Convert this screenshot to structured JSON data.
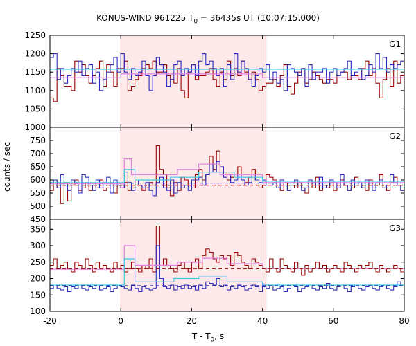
{
  "chart_data": {
    "type": "line",
    "title": {
      "prefix": "KONUS-WIND 961225 T",
      "sub": "0",
      "suffix": " = 36435s UT (10:07:15.000)"
    },
    "xlabel": {
      "prefix": "T - T",
      "sub": "0",
      "suffix": ", s"
    },
    "ylabel": "counts / sec",
    "xlim": [
      -20,
      80
    ],
    "xticks": [
      "-20",
      "0",
      "20",
      "40",
      "60",
      "80"
    ],
    "highlight_interval": [
      0,
      41
    ],
    "colors": {
      "red": "#990000",
      "blue": "#2b2bbb",
      "cyan": "#40c8e0",
      "pink": "#e080e0",
      "red_dash": "#990000",
      "blue_dash": "#2222aa",
      "shade": "#fde9ea"
    },
    "panels": [
      {
        "label": "G1",
        "ylim": [
          1000,
          1250
        ],
        "yticks": [
          1000,
          1050,
          1100,
          1150,
          1200,
          1250
        ],
        "series": [
          {
            "color": "red",
            "values": [
              1080,
              1070,
              1160,
              1140,
              1110,
              1110,
              1100,
              1180,
              1150,
              1170,
              1140,
              1120,
              1140,
              1160,
              1180,
              1110,
              1170,
              1150,
              1110,
              1160,
              1160,
              1180,
              1100,
              1110,
              1130,
              1140,
              1160,
              1170,
              1160,
              1180,
              1150,
              1150,
              1170,
              1140,
              1130,
              1120,
              1160,
              1100,
              1080,
              1150,
              1170,
              1130,
              1140,
              1140,
              1150,
              1160,
              1130,
              1110,
              1150,
              1130,
              1180,
              1140,
              1160,
              1140,
              1180,
              1150,
              1130,
              1150,
              1130,
              1100,
              1110,
              1120,
              1120,
              1130,
              1110,
              1140,
              1170,
              1110,
              1090,
              1120,
              1150,
              1160,
              1120,
              1130,
              1150,
              1140,
              1130,
              1120,
              1130,
              1130,
              1120,
              1140,
              1150,
              1150,
              1130,
              1140,
              1140,
              1130,
              1160,
              1180,
              1140,
              1160,
              1120,
              1080,
              1130,
              1160,
              1110,
              1180,
              1120,
              1140
            ]
          },
          {
            "color": "blue",
            "values": [
              1190,
              1200,
              1130,
              1160,
              1120,
              1140,
              1160,
              1150,
              1180,
              1140,
              1160,
              1170,
              1120,
              1150,
              1100,
              1130,
              1150,
              1170,
              1190,
              1150,
              1200,
              1150,
              1130,
              1160,
              1140,
              1150,
              1180,
              1140,
              1100,
              1140,
              1190,
              1170,
              1150,
              1110,
              1130,
              1170,
              1180,
              1140,
              1160,
              1150,
              1170,
              1140,
              1180,
              1200,
              1170,
              1180,
              1160,
              1140,
              1160,
              1110,
              1170,
              1130,
              1200,
              1150,
              1180,
              1160,
              1130,
              1110,
              1140,
              1160,
              1150,
              1170,
              1130,
              1150,
              1120,
              1130,
              1100,
              1170,
              1160,
              1150,
              1140,
              1160,
              1110,
              1170,
              1130,
              1150,
              1150,
              1160,
              1120,
              1150,
              1160,
              1140,
              1150,
              1160,
              1180,
              1140,
              1150,
              1160,
              1130,
              1140,
              1170,
              1150,
              1200,
              1160,
              1190,
              1150,
              1170,
              1160,
              1170,
              1180
            ]
          },
          {
            "color": "pink",
            "steps": [
              [
                -20,
                1135
              ],
              [
                0,
                1145
              ],
              [
                40,
                1135
              ],
              [
                80,
                1135
              ]
            ]
          },
          {
            "color": "cyan",
            "steps": [
              [
                -20,
                1158
              ],
              [
                0,
                1158
              ],
              [
                40,
                1158
              ],
              [
                80,
                1158
              ]
            ]
          }
        ]
      },
      {
        "label": "G2",
        "ylim": [
          450,
          800
        ],
        "yticks": [
          450,
          500,
          550,
          600,
          650,
          700,
          750
        ],
        "series": [
          {
            "color": "red",
            "values": [
              560,
              600,
              570,
              510,
              590,
              520,
              580,
              600,
              560,
              570,
              590,
              560,
              580,
              570,
              600,
              560,
              570,
              590,
              550,
              580,
              570,
              590,
              560,
              570,
              600,
              580,
              560,
              570,
              590,
              580,
              730,
              640,
              620,
              570,
              540,
              590,
              560,
              610,
              600,
              580,
              570,
              620,
              640,
              600,
              620,
              690,
              640,
              710,
              650,
              630,
              600,
              610,
              620,
              650,
              600,
              590,
              610,
              640,
              600,
              570,
              580,
              620,
              610,
              600,
              570,
              560,
              590,
              560,
              580,
              570,
              590,
              570,
              550,
              600,
              570,
              610,
              560,
              580,
              570,
              590,
              560,
              570,
              600,
              580,
              560,
              570,
              610,
              580,
              570,
              560,
              600,
              570,
              580,
              620,
              570,
              560,
              590,
              610,
              580,
              560
            ]
          },
          {
            "color": "blue",
            "values": [
              590,
              600,
              570,
              620,
              580,
              560,
              600,
              590,
              550,
              620,
              610,
              580,
              560,
              600,
              570,
              590,
              610,
              550,
              600,
              580,
              570,
              630,
              590,
              560,
              600,
              580,
              570,
              590,
              560,
              540,
              590,
              610,
              570,
              560,
              600,
              550,
              590,
              570,
              580,
              560,
              600,
              600,
              610,
              580,
              620,
              660,
              630,
              670,
              650,
              610,
              620,
              590,
              600,
              620,
              600,
              580,
              590,
              620,
              600,
              590,
              600,
              580,
              580,
              590,
              570,
              600,
              580,
              560,
              590,
              600,
              580,
              560,
              570,
              600,
              590,
              580,
              610,
              570,
              580,
              600,
              590,
              570,
              620,
              580,
              560,
              600,
              580,
              590,
              570,
              600,
              580,
              560,
              590,
              600,
              570,
              580,
              620,
              590,
              580,
              560
            ]
          },
          {
            "color": "pink",
            "steps": [
              [
                -20,
                585
              ],
              [
                0,
                585
              ],
              [
                1,
                680
              ],
              [
                3,
                620
              ],
              [
                16,
                640
              ],
              [
                22,
                660
              ],
              [
                28,
                620
              ],
              [
                40,
                590
              ],
              [
                80,
                590
              ]
            ]
          },
          {
            "color": "cyan",
            "steps": [
              [
                -20,
                590
              ],
              [
                0,
                590
              ],
              [
                1,
                640
              ],
              [
                4,
                600
              ],
              [
                14,
                610
              ],
              [
                22,
                630
              ],
              [
                32,
                610
              ],
              [
                40,
                595
              ],
              [
                80,
                595
              ]
            ]
          },
          {
            "color": "red_dash",
            "y": 580
          },
          {
            "color": "blue_dash",
            "y": 588
          }
        ]
      },
      {
        "label": "G3",
        "ylim": [
          100,
          380
        ],
        "yticks": [
          100,
          150,
          200,
          250,
          300,
          350
        ],
        "series": [
          {
            "color": "red",
            "values": [
              240,
              260,
              230,
              240,
              250,
              230,
              220,
              250,
              240,
              230,
              260,
              240,
              220,
              250,
              230,
              240,
              230,
              220,
              250,
              230,
              240,
              220,
              230,
              250,
              230,
              220,
              240,
              230,
              260,
              220,
              360,
              240,
              260,
              240,
              230,
              220,
              240,
              250,
              230,
              220,
              250,
              260,
              230,
              270,
              290,
              280,
              260,
              250,
              270,
              260,
              270,
              240,
              280,
              270,
              250,
              240,
              230,
              260,
              250,
              240,
              230,
              220,
              260,
              230,
              220,
              260,
              240,
              230,
              220,
              250,
              230,
              210,
              240,
              220,
              230,
              250,
              230,
              240,
              220,
              230,
              240,
              230,
              220,
              250,
              240,
              230,
              220,
              240,
              230,
              240,
              250,
              230,
              220,
              240,
              230,
              220,
              230,
              240,
              230,
              220
            ]
          },
          {
            "color": "blue",
            "values": [
              170,
              180,
              170,
              165,
              175,
              160,
              175,
              170,
              180,
              170,
              165,
              175,
              170,
              180,
              165,
              170,
              175,
              160,
              170,
              180,
              175,
              170,
              165,
              180,
              170,
              160,
              175,
              170,
              165,
              170,
              300,
              200,
              175,
              170,
              180,
              165,
              175,
              170,
              180,
              170,
              175,
              165,
              180,
              170,
              190,
              185,
              180,
              200,
              175,
              180,
              165,
              175,
              170,
              180,
              175,
              165,
              170,
              180,
              175,
              160,
              175,
              170,
              180,
              165,
              170,
              175,
              160,
              170,
              180,
              175,
              160,
              170,
              175,
              180,
              170,
              165,
              175,
              170,
              185,
              170,
              165,
              175,
              180,
              170,
              160,
              175,
              180,
              170,
              165,
              175,
              180,
              170,
              165,
              175,
              180,
              170,
              165,
              175,
              190,
              180
            ]
          },
          {
            "color": "pink",
            "steps": [
              [
                -20,
                228
              ],
              [
                0,
                228
              ],
              [
                1,
                300
              ],
              [
                4,
                240
              ],
              [
                16,
                250
              ],
              [
                23,
                262
              ],
              [
                30,
                245
              ],
              [
                40,
                230
              ],
              [
                80,
                230
              ]
            ]
          },
          {
            "color": "cyan",
            "steps": [
              [
                -20,
                180
              ],
              [
                0,
                180
              ],
              [
                1,
                260
              ],
              [
                4,
                190
              ],
              [
                15,
                200
              ],
              [
                22,
                205
              ],
              [
                30,
                190
              ],
              [
                40,
                180
              ],
              [
                80,
                180
              ]
            ]
          },
          {
            "color": "red_dash",
            "y": 230
          },
          {
            "color": "blue_dash",
            "y": 178
          }
        ]
      }
    ]
  }
}
